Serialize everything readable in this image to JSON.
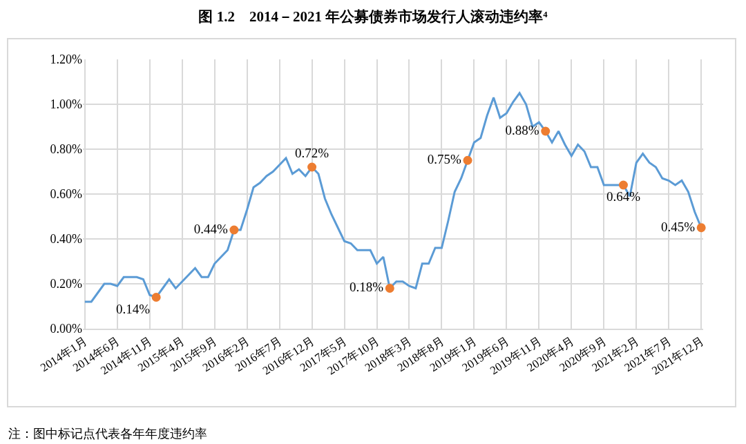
{
  "chart_data": {
    "type": "line",
    "title": "图 1.2　2014－2021 年公募债券市场发行人滚动违约率⁴",
    "categories": [
      "2014年1月",
      null,
      null,
      null,
      null,
      "2014年6月",
      null,
      null,
      null,
      null,
      "2014年11月",
      null,
      null,
      null,
      null,
      "2015年4月",
      null,
      null,
      null,
      null,
      "2015年9月",
      null,
      null,
      null,
      null,
      "2016年2月",
      null,
      null,
      null,
      null,
      "2016年7月",
      null,
      null,
      null,
      null,
      "2016年12月",
      null,
      null,
      null,
      null,
      "2017年5月",
      null,
      null,
      null,
      null,
      "2017年10月",
      null,
      null,
      null,
      null,
      "2018年3月",
      null,
      null,
      null,
      null,
      "2018年8月",
      null,
      null,
      null,
      null,
      "2019年1月",
      null,
      null,
      null,
      null,
      "2019年6月",
      null,
      null,
      null,
      null,
      "2019年11月",
      null,
      null,
      null,
      null,
      "2020年4月",
      null,
      null,
      null,
      null,
      "2020年9月",
      null,
      null,
      null,
      null,
      "2021年2月",
      null,
      null,
      null,
      null,
      "2021年7月",
      null,
      null,
      null,
      null,
      "2021年12月"
    ],
    "series": [
      {
        "color": "#5b9bd5",
        "marker": "none",
        "values": [
          0.12,
          0.12,
          0.16,
          0.2,
          0.2,
          0.19,
          0.23,
          0.23,
          0.23,
          0.22,
          0.15,
          0.14,
          0.18,
          0.22,
          0.18,
          0.21,
          0.24,
          0.27,
          0.23,
          0.23,
          0.29,
          0.32,
          0.35,
          0.44,
          0.44,
          0.53,
          0.63,
          0.65,
          0.68,
          0.7,
          0.73,
          0.76,
          0.69,
          0.71,
          0.68,
          0.72,
          0.69,
          0.58,
          0.51,
          0.45,
          0.39,
          0.38,
          0.35,
          0.35,
          0.35,
          0.29,
          0.32,
          0.18,
          0.21,
          0.21,
          0.19,
          0.18,
          0.29,
          0.29,
          0.36,
          0.36,
          0.48,
          0.61,
          0.67,
          0.75,
          0.83,
          0.85,
          0.95,
          1.03,
          0.94,
          0.96,
          1.01,
          1.05,
          1.0,
          0.9,
          0.92,
          0.88,
          0.83,
          0.88,
          0.82,
          0.77,
          0.82,
          0.79,
          0.72,
          0.72,
          0.64,
          0.64,
          0.64,
          0.64,
          0.59,
          0.74,
          0.78,
          0.74,
          0.72,
          0.67,
          0.66,
          0.64,
          0.66,
          0.61,
          0.52,
          0.45
        ]
      },
      {
        "type": "scatter",
        "color": "#ed7d31",
        "marker": "circle",
        "values": [
          null,
          null,
          null,
          null,
          null,
          null,
          null,
          null,
          null,
          null,
          null,
          0.14,
          null,
          null,
          null,
          null,
          null,
          null,
          null,
          null,
          null,
          null,
          null,
          0.44,
          null,
          null,
          null,
          null,
          null,
          null,
          null,
          null,
          null,
          null,
          null,
          0.72,
          null,
          null,
          null,
          null,
          null,
          null,
          null,
          null,
          null,
          null,
          null,
          0.18,
          null,
          null,
          null,
          null,
          null,
          null,
          null,
          null,
          null,
          null,
          null,
          0.75,
          null,
          null,
          null,
          null,
          null,
          null,
          null,
          null,
          null,
          null,
          null,
          0.88,
          null,
          null,
          null,
          null,
          null,
          null,
          null,
          null,
          null,
          null,
          null,
          0.64,
          null,
          null,
          null,
          null,
          null,
          null,
          null,
          null,
          null,
          null,
          null,
          0.45
        ],
        "value_labels": [
          null,
          null,
          null,
          null,
          null,
          null,
          null,
          null,
          null,
          null,
          null,
          "0.14%",
          null,
          null,
          null,
          null,
          null,
          null,
          null,
          null,
          null,
          null,
          null,
          "0.44%",
          null,
          null,
          null,
          null,
          null,
          null,
          null,
          null,
          null,
          null,
          null,
          "0.72%",
          null,
          null,
          null,
          null,
          null,
          null,
          null,
          null,
          null,
          null,
          null,
          "0.18%",
          null,
          null,
          null,
          null,
          null,
          null,
          null,
          null,
          null,
          null,
          null,
          "0.75%",
          null,
          null,
          null,
          null,
          null,
          null,
          null,
          null,
          null,
          null,
          null,
          "0.88%",
          null,
          null,
          null,
          null,
          null,
          null,
          null,
          null,
          null,
          null,
          null,
          "0.64%",
          null,
          null,
          null,
          null,
          null,
          null,
          null,
          null,
          null,
          null,
          null,
          "0.45%"
        ]
      }
    ],
    "ylim": [
      0,
      1.2
    ],
    "yticks": [
      {
        "value": 0,
        "label": "0.00%"
      },
      {
        "value": 0.2,
        "label": "0.20%"
      },
      {
        "value": 0.4,
        "label": "0.40%"
      },
      {
        "value": 0.6,
        "label": "0.60%"
      },
      {
        "value": 0.8,
        "label": "0.80%"
      },
      {
        "value": 1.0,
        "label": "1.00%"
      },
      {
        "value": 1.2,
        "label": "1.20%"
      }
    ],
    "grid": true,
    "line_style": "solid",
    "annotations": [
      "注：图中标记点代表各年年度违约率"
    ]
  }
}
